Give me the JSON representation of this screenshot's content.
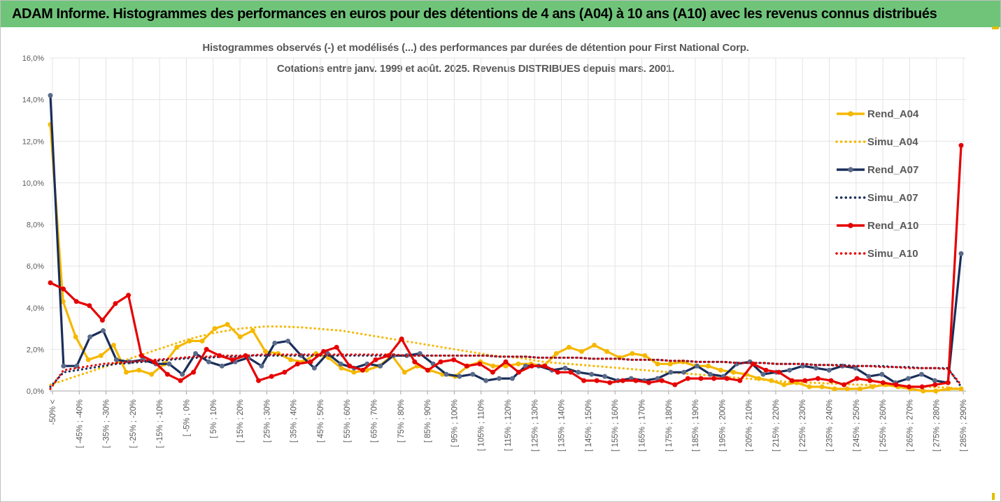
{
  "header": {
    "title": "ADAM Informe. Histogrammes des performances en euros pour des détentions de 4 ans (A04) à 10 ans (A10) avec les revenus connus distribués"
  },
  "chart_data": {
    "type": "line",
    "title": "Histogrammes observés (-) et modélisés (...) des performances par durées de détention pour First National Corp.",
    "subtitle": "Cotations entre janv. 1999 et août. 2025. Revenus DISTRIBUES depuis mars. 2001.",
    "xlabel": "",
    "ylabel": "",
    "ylim": [
      0,
      16
    ],
    "y_ticks": [
      "0,0%",
      "2,0%",
      "4,0%",
      "6,0%",
      "8,0%",
      "10,0%",
      "12,0%",
      "14,0%",
      "16,0%"
    ],
    "x_tick_labels": [
      "-50% <",
      "[ -45% ; -40%",
      "[ -35% ; -30%",
      "[ -25% ; -20%",
      "[ -15% ; -10%",
      "[ -5% ; 0%",
      "[ 5% ; 10%",
      "[ 15% ; 20%",
      "[ 25% ; 30%",
      "[ 35% ; 40%",
      "[ 45% ; 50%",
      "[ 55% ; 60%",
      "[ 65% ; 70%",
      "[ 75% ; 80%",
      "[ 85% ; 90%",
      "[ 95% ; 100%",
      "[ 105% ; 110%",
      "[ 115% ; 120%",
      "[ 125% ; 130%",
      "[ 135% ; 140%",
      "[ 145% ; 150%",
      "[ 155% ; 160%",
      "[ 165% ; 170%",
      "[ 175% ; 180%",
      "[ 185% ; 190%",
      "[ 195% ; 200%",
      "[ 205% ; 210%",
      "[ 215% ; 220%",
      "[ 225% ; 230%",
      "[ 235% ; 240%",
      "[ 245% ; 250%",
      "[ 255% ; 260%",
      "[ 265% ; 270%",
      "[ 275% ; 280%",
      "[ 285% ; 290%"
    ],
    "grid": true,
    "legend_position": "right",
    "series": [
      {
        "name": "Rend_A04",
        "style": "solid",
        "color": "#f5b800",
        "values": [
          12.8,
          4.3,
          2.6,
          1.5,
          1.7,
          2.2,
          0.9,
          1.0,
          0.8,
          1.3,
          2.1,
          2.4,
          2.4,
          3.0,
          3.2,
          2.6,
          2.9,
          1.9,
          1.8,
          1.5,
          1.4,
          1.8,
          1.6,
          1.1,
          0.9,
          1.0,
          1.2,
          1.7,
          0.9,
          1.2,
          1.0,
          0.8,
          0.7,
          1.2,
          1.4,
          1.2,
          1.2,
          1.3,
          1.3,
          1.2,
          1.8,
          2.1,
          1.9,
          2.2,
          1.9,
          1.6,
          1.8,
          1.7,
          1.3,
          1.3,
          1.4,
          1.2,
          1.2,
          1.0,
          0.9,
          0.8,
          0.6,
          0.5,
          0.3,
          0.4,
          0.2,
          0.2,
          0.1,
          0.1,
          0.1,
          0.2,
          0.3,
          0.2,
          0.1,
          0.0,
          0.0,
          0.1,
          0.1
        ]
      },
      {
        "name": "Simu_A04",
        "style": "dotted",
        "color": "#f5b800",
        "values": [
          0.3,
          0.5,
          0.7,
          0.9,
          1.1,
          1.3,
          1.5,
          1.7,
          1.9,
          2.1,
          2.3,
          2.5,
          2.65,
          2.8,
          2.9,
          3.0,
          3.05,
          3.1,
          3.1,
          3.08,
          3.05,
          3.0,
          2.95,
          2.9,
          2.8,
          2.7,
          2.6,
          2.5,
          2.4,
          2.3,
          2.2,
          2.1,
          2.0,
          1.9,
          1.8,
          1.7,
          1.65,
          1.6,
          1.5,
          1.4,
          1.35,
          1.3,
          1.25,
          1.2,
          1.15,
          1.1,
          1.05,
          1.0,
          0.95,
          0.9,
          0.85,
          0.8,
          0.75,
          0.7,
          0.65,
          0.6,
          0.55,
          0.5,
          0.45,
          0.42,
          0.4,
          0.38,
          0.35,
          0.32,
          0.3,
          0.28,
          0.26,
          0.24,
          0.22,
          0.2,
          0.18,
          0.16,
          0.1
        ]
      },
      {
        "name": "Rend_A07",
        "style": "solid",
        "color": "#1a2e5a",
        "values": [
          14.2,
          1.2,
          1.2,
          2.6,
          2.9,
          1.5,
          1.4,
          1.5,
          1.3,
          1.3,
          0.8,
          1.8,
          1.4,
          1.2,
          1.4,
          1.6,
          1.2,
          2.3,
          2.4,
          1.7,
          1.1,
          1.8,
          1.3,
          1.1,
          1.3,
          1.2,
          1.7,
          1.7,
          1.8,
          1.3,
          0.8,
          0.7,
          0.8,
          0.5,
          0.6,
          0.6,
          1.2,
          1.2,
          1.0,
          1.1,
          0.9,
          0.8,
          0.7,
          0.5,
          0.6,
          0.5,
          0.6,
          0.9,
          0.9,
          1.2,
          0.8,
          0.7,
          1.3,
          1.4,
          0.8,
          0.9,
          1.0,
          1.2,
          1.1,
          1.0,
          1.2,
          1.1,
          0.7,
          0.8,
          0.4,
          0.6,
          0.8,
          0.5,
          0.4,
          6.6
        ]
      },
      {
        "name": "Simu_A07",
        "style": "dotted",
        "color": "#1a2e5a",
        "values": [
          0.2,
          0.9,
          1.0,
          1.1,
          1.2,
          1.3,
          1.35,
          1.4,
          1.45,
          1.5,
          1.55,
          1.6,
          1.6,
          1.65,
          1.65,
          1.7,
          1.7,
          1.7,
          1.7,
          1.7,
          1.7,
          1.7,
          1.7,
          1.7,
          1.7,
          1.7,
          1.7,
          1.7,
          1.7,
          1.7,
          1.7,
          1.7,
          1.7,
          1.7,
          1.65,
          1.65,
          1.65,
          1.6,
          1.6,
          1.6,
          1.6,
          1.55,
          1.55,
          1.55,
          1.5,
          1.5,
          1.5,
          1.45,
          1.45,
          1.4,
          1.4,
          1.4,
          1.35,
          1.35,
          1.35,
          1.3,
          1.3,
          1.3,
          1.25,
          1.25,
          1.25,
          1.2,
          1.2,
          1.2,
          1.15,
          1.15,
          1.1,
          1.1,
          1.1,
          0.2
        ]
      },
      {
        "name": "Rend_A10",
        "style": "solid",
        "color": "#e60000",
        "values": [
          5.2,
          4.9,
          4.3,
          4.1,
          3.4,
          4.2,
          4.6,
          1.7,
          1.4,
          0.8,
          0.5,
          0.9,
          2.0,
          1.7,
          1.5,
          1.7,
          0.5,
          0.7,
          0.9,
          1.3,
          1.4,
          1.9,
          2.1,
          1.2,
          1.0,
          1.5,
          1.7,
          2.5,
          1.4,
          1.0,
          1.4,
          1.5,
          1.2,
          1.3,
          0.9,
          1.4,
          0.9,
          1.2,
          1.2,
          0.9,
          0.9,
          0.5,
          0.5,
          0.4,
          0.5,
          0.5,
          0.4,
          0.5,
          0.3,
          0.6,
          0.6,
          0.6,
          0.6,
          0.5,
          1.3,
          1.0,
          0.9,
          0.5,
          0.5,
          0.6,
          0.5,
          0.3,
          0.6,
          0.5,
          0.4,
          0.3,
          0.2,
          0.2,
          0.3,
          0.4,
          11.8
        ]
      },
      {
        "name": "Simu_A10",
        "style": "dotted",
        "color": "#e60000",
        "values": [
          0.1,
          1.0,
          1.1,
          1.2,
          1.3,
          1.35,
          1.4,
          1.45,
          1.5,
          1.55,
          1.6,
          1.65,
          1.65,
          1.7,
          1.7,
          1.7,
          1.75,
          1.75,
          1.75,
          1.75,
          1.75,
          1.75,
          1.75,
          1.75,
          1.75,
          1.75,
          1.75,
          1.7,
          1.7,
          1.7,
          1.7,
          1.7,
          1.7,
          1.7,
          1.65,
          1.65,
          1.65,
          1.6,
          1.6,
          1.6,
          1.6,
          1.55,
          1.55,
          1.55,
          1.5,
          1.5,
          1.5,
          1.45,
          1.45,
          1.4,
          1.4,
          1.4,
          1.35,
          1.35,
          1.35,
          1.3,
          1.3,
          1.3,
          1.25,
          1.25,
          1.2,
          1.2,
          1.2,
          1.15,
          1.15,
          1.1,
          1.1,
          1.1,
          1.05,
          0.3
        ]
      }
    ]
  }
}
